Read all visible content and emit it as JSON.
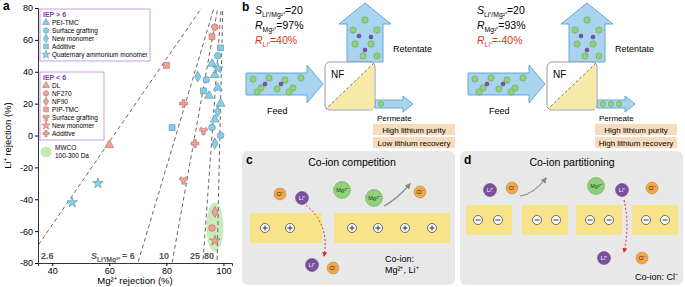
{
  "chart_data": {
    "type": "scatter",
    "panel_label": "a",
    "x_label": "Mg²⁺ rejection (%)",
    "y_label": "Li⁺ rejection (%)",
    "xlim": [
      35,
      103
    ],
    "xticks": [
      40,
      60,
      80,
      100
    ],
    "ylim": [
      -80,
      80
    ],
    "yticks": [
      -80,
      -60,
      -40,
      -20,
      0,
      20,
      40,
      60,
      80
    ],
    "legend": "upper left",
    "groups": [
      {
        "title": "IEP > 6",
        "color": "#86cfeb",
        "series": [
          {
            "name": "PEI-TMC",
            "marker": "triangle",
            "x": [
              96,
              97,
              98,
              99,
              97,
              95
            ],
            "values": [
              45,
              38,
              30,
              20,
              10,
              25
            ]
          },
          {
            "name": "Surface grafting",
            "marker": "circle",
            "x": [
              98,
              96,
              99,
              94
            ],
            "values": [
              50,
              5,
              0,
              35
            ]
          },
          {
            "name": "New monomer",
            "marker": "diamond",
            "x": [
              97,
              98,
              91
            ],
            "values": [
              -5,
              15,
              37
            ]
          },
          {
            "name": "Additive",
            "marker": "square",
            "x": [
              82,
              93,
              99
            ],
            "values": [
              5,
              28,
              55
            ]
          },
          {
            "name": "Quaternary ammonium monomer",
            "marker": "star",
            "x": [
              56,
              47,
              98
            ],
            "values": [
              -30,
              -42,
              42
            ]
          }
        ]
      },
      {
        "title": "IEP < 6",
        "color": "#f3a096",
        "series": [
          {
            "name": "DL",
            "marker": "triangle",
            "x": [
              60
            ],
            "values": [
              -6
            ]
          },
          {
            "name": "NF270",
            "marker": "circle",
            "x": [
              96,
              97
            ],
            "values": [
              -58,
              68
            ]
          },
          {
            "name": "NF90",
            "marker": "diamond",
            "x": [
              97
            ],
            "values": [
              -48
            ]
          },
          {
            "name": "PIP-TMC",
            "marker": "square",
            "x": [
              96,
              80
            ],
            "values": [
              62,
              44
            ]
          },
          {
            "name": "Surface grafting",
            "marker": "wye",
            "x": [
              86,
              93
            ],
            "values": [
              -28,
              3
            ]
          },
          {
            "name": "New monomer",
            "marker": "star",
            "x": [
              97
            ],
            "values": [
              -66
            ]
          },
          {
            "name": "Additive",
            "marker": "cross",
            "x": [
              86,
              90
            ],
            "values": [
              20,
              -5
            ]
          }
        ]
      }
    ],
    "reference_lines": {
      "symbol": "S",
      "subscript": "Li⁺/Mg²⁺",
      "line_style": "dashed",
      "through": [
        100,
        100
      ],
      "values": [
        2.6,
        {
          "value": 6,
          "label": "= 6"
        },
        10,
        25,
        80
      ]
    },
    "regions": [
      {
        "label": [
          "MWCO",
          "100-300 Da"
        ],
        "color": "#b5e3a0",
        "x_range": [
          94,
          100
        ],
        "y_range": [
          -73,
          -42
        ]
      }
    ]
  },
  "diagrams": {
    "ions": {
      "mg": "Mg²⁺",
      "li": "Li⁺",
      "cl": "Cl⁻"
    },
    "panel_b": {
      "label": "b",
      "cases": [
        {
          "lines": [
            {
              "main": "S",
              "sub": "Li⁺/Mg²⁺",
              "rest": "=20",
              "color": "#000000"
            },
            {
              "main": "R",
              "sub": "Mg²⁺",
              "rest": "=97%",
              "color": "#000000"
            },
            {
              "main": "R",
              "sub": "Li⁺",
              "rest": "=40%",
              "color": "#e0301e"
            }
          ],
          "feed": "Feed",
          "membrane": "NF",
          "retentate": "Retentate",
          "permeate": "Permeate",
          "outcomes": [
            "High lithium purity",
            "Low lithium recovery"
          ]
        },
        {
          "lines": [
            {
              "main": "S",
              "sub": "Li⁺/Mg²⁺",
              "rest": "=20",
              "color": "#000000"
            },
            {
              "main": "R",
              "sub": "Mg²⁺",
              "rest": "=93%",
              "color": "#000000"
            },
            {
              "main": "R",
              "sub": "Li⁺",
              "rest": "=-40%",
              "color": "#e0301e"
            }
          ],
          "feed": "Feed",
          "membrane": "NF",
          "retentate": "Retentate",
          "permeate": "Permeate",
          "outcomes": [
            "High lithium purity",
            "High lithium recovery"
          ]
        }
      ]
    },
    "panel_c": {
      "label": "c",
      "title": "Co-ion competition",
      "note": [
        "Co-ion:",
        "Mg²⁺, Li⁺"
      ]
    },
    "panel_d": {
      "label": "d",
      "title": "Co-ion partitioning",
      "note": "Co-ion: Cl⁻"
    }
  }
}
